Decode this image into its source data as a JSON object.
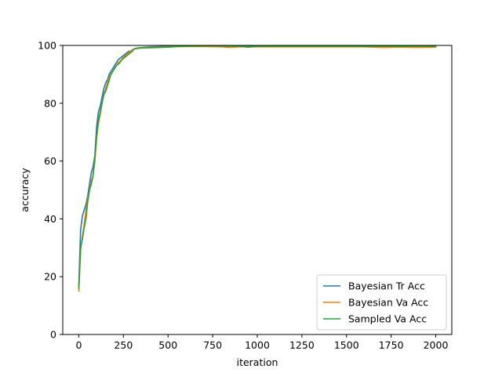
{
  "chart_data": {
    "type": "line",
    "title": "",
    "xlabel": "iteration",
    "ylabel": "accuracy",
    "xlim": [
      -90,
      2090
    ],
    "ylim": [
      0,
      100
    ],
    "xticks": [
      0,
      250,
      500,
      750,
      1000,
      1250,
      1500,
      1750,
      2000
    ],
    "yticks": [
      0,
      20,
      40,
      60,
      80,
      100
    ],
    "grid": false,
    "legend_position": "lower-right",
    "series": [
      {
        "name": "Bayesian Tr Acc",
        "color": "#1f77b4",
        "points": [
          [
            0,
            17
          ],
          [
            10,
            36
          ],
          [
            20,
            41
          ],
          [
            30,
            43
          ],
          [
            40,
            45
          ],
          [
            50,
            48
          ],
          [
            60,
            52
          ],
          [
            70,
            56
          ],
          [
            80,
            58
          ],
          [
            90,
            62
          ],
          [
            100,
            72
          ],
          [
            110,
            77
          ],
          [
            120,
            79
          ],
          [
            130,
            82
          ],
          [
            140,
            85
          ],
          [
            150,
            87
          ],
          [
            160,
            88
          ],
          [
            170,
            90
          ],
          [
            180,
            91
          ],
          [
            190,
            92
          ],
          [
            200,
            93
          ],
          [
            210,
            94
          ],
          [
            220,
            95
          ],
          [
            230,
            95.5
          ],
          [
            240,
            96
          ],
          [
            250,
            96.5
          ],
          [
            260,
            97
          ],
          [
            270,
            97.5
          ],
          [
            280,
            98
          ],
          [
            290,
            98
          ],
          [
            300,
            98.5
          ],
          [
            320,
            99
          ],
          [
            350,
            99.3
          ],
          [
            400,
            99.5
          ],
          [
            450,
            99.6
          ],
          [
            500,
            99.7
          ],
          [
            600,
            99.8
          ],
          [
            700,
            99.8
          ],
          [
            800,
            99.8
          ],
          [
            900,
            99.8
          ],
          [
            1000,
            99.8
          ],
          [
            1100,
            99.8
          ],
          [
            1200,
            99.8
          ],
          [
            1300,
            99.8
          ],
          [
            1400,
            99.8
          ],
          [
            1500,
            99.8
          ],
          [
            1600,
            99.8
          ],
          [
            1700,
            99.8
          ],
          [
            1800,
            99.8
          ],
          [
            1900,
            99.8
          ],
          [
            2000,
            99.8
          ]
        ]
      },
      {
        "name": "Bayesian Va Acc",
        "color": "#ff7f0e",
        "points": [
          [
            0,
            15
          ],
          [
            10,
            29
          ],
          [
            20,
            34
          ],
          [
            30,
            38
          ],
          [
            40,
            43
          ],
          [
            50,
            47
          ],
          [
            60,
            50
          ],
          [
            70,
            53
          ],
          [
            80,
            55
          ],
          [
            90,
            60
          ],
          [
            100,
            68
          ],
          [
            110,
            73
          ],
          [
            120,
            76
          ],
          [
            130,
            80
          ],
          [
            140,
            83
          ],
          [
            150,
            85
          ],
          [
            160,
            87
          ],
          [
            170,
            89
          ],
          [
            180,
            90
          ],
          [
            190,
            91
          ],
          [
            200,
            92
          ],
          [
            210,
            93
          ],
          [
            220,
            94
          ],
          [
            230,
            94.5
          ],
          [
            240,
            95
          ],
          [
            250,
            96
          ],
          [
            260,
            96.5
          ],
          [
            270,
            97
          ],
          [
            280,
            97.5
          ],
          [
            290,
            98
          ],
          [
            300,
            98.5
          ],
          [
            320,
            99
          ],
          [
            350,
            99.2
          ],
          [
            400,
            99.3
          ],
          [
            450,
            99.4
          ],
          [
            500,
            99.5
          ],
          [
            550,
            99.6
          ],
          [
            600,
            99.6
          ],
          [
            700,
            99.6
          ],
          [
            800,
            99.5
          ],
          [
            850,
            99.3
          ],
          [
            900,
            99.5
          ],
          [
            1000,
            99.5
          ],
          [
            1100,
            99.5
          ],
          [
            1200,
            99.5
          ],
          [
            1300,
            99.5
          ],
          [
            1400,
            99.5
          ],
          [
            1500,
            99.5
          ],
          [
            1600,
            99.5
          ],
          [
            1700,
            99.3
          ],
          [
            1800,
            99.4
          ],
          [
            1900,
            99.3
          ],
          [
            2000,
            99.4
          ]
        ]
      },
      {
        "name": "Sampled Va Acc",
        "color": "#2ca02c",
        "points": [
          [
            0,
            16
          ],
          [
            10,
            30
          ],
          [
            20,
            33
          ],
          [
            30,
            37
          ],
          [
            40,
            40
          ],
          [
            50,
            46
          ],
          [
            60,
            50
          ],
          [
            70,
            52
          ],
          [
            80,
            55
          ],
          [
            90,
            61
          ],
          [
            100,
            69
          ],
          [
            110,
            74
          ],
          [
            120,
            77
          ],
          [
            130,
            80
          ],
          [
            140,
            83
          ],
          [
            150,
            84
          ],
          [
            160,
            86
          ],
          [
            170,
            88
          ],
          [
            180,
            90
          ],
          [
            190,
            91
          ],
          [
            200,
            92
          ],
          [
            210,
            93
          ],
          [
            220,
            93.5
          ],
          [
            230,
            94
          ],
          [
            240,
            95
          ],
          [
            250,
            95.5
          ],
          [
            260,
            96
          ],
          [
            270,
            96.5
          ],
          [
            280,
            97
          ],
          [
            290,
            97.5
          ],
          [
            300,
            98
          ],
          [
            310,
            98.8
          ],
          [
            330,
            99
          ],
          [
            350,
            99.1
          ],
          [
            400,
            99.2
          ],
          [
            450,
            99.3
          ],
          [
            500,
            99.4
          ],
          [
            550,
            99.6
          ],
          [
            600,
            99.7
          ],
          [
            700,
            99.8
          ],
          [
            800,
            99.8
          ],
          [
            900,
            99.7
          ],
          [
            950,
            99.4
          ],
          [
            1000,
            99.7
          ],
          [
            1100,
            99.7
          ],
          [
            1200,
            99.7
          ],
          [
            1300,
            99.7
          ],
          [
            1400,
            99.7
          ],
          [
            1500,
            99.7
          ],
          [
            1600,
            99.7
          ],
          [
            1700,
            99.7
          ],
          [
            1800,
            99.7
          ],
          [
            1900,
            99.7
          ],
          [
            2000,
            99.7
          ]
        ]
      }
    ]
  }
}
